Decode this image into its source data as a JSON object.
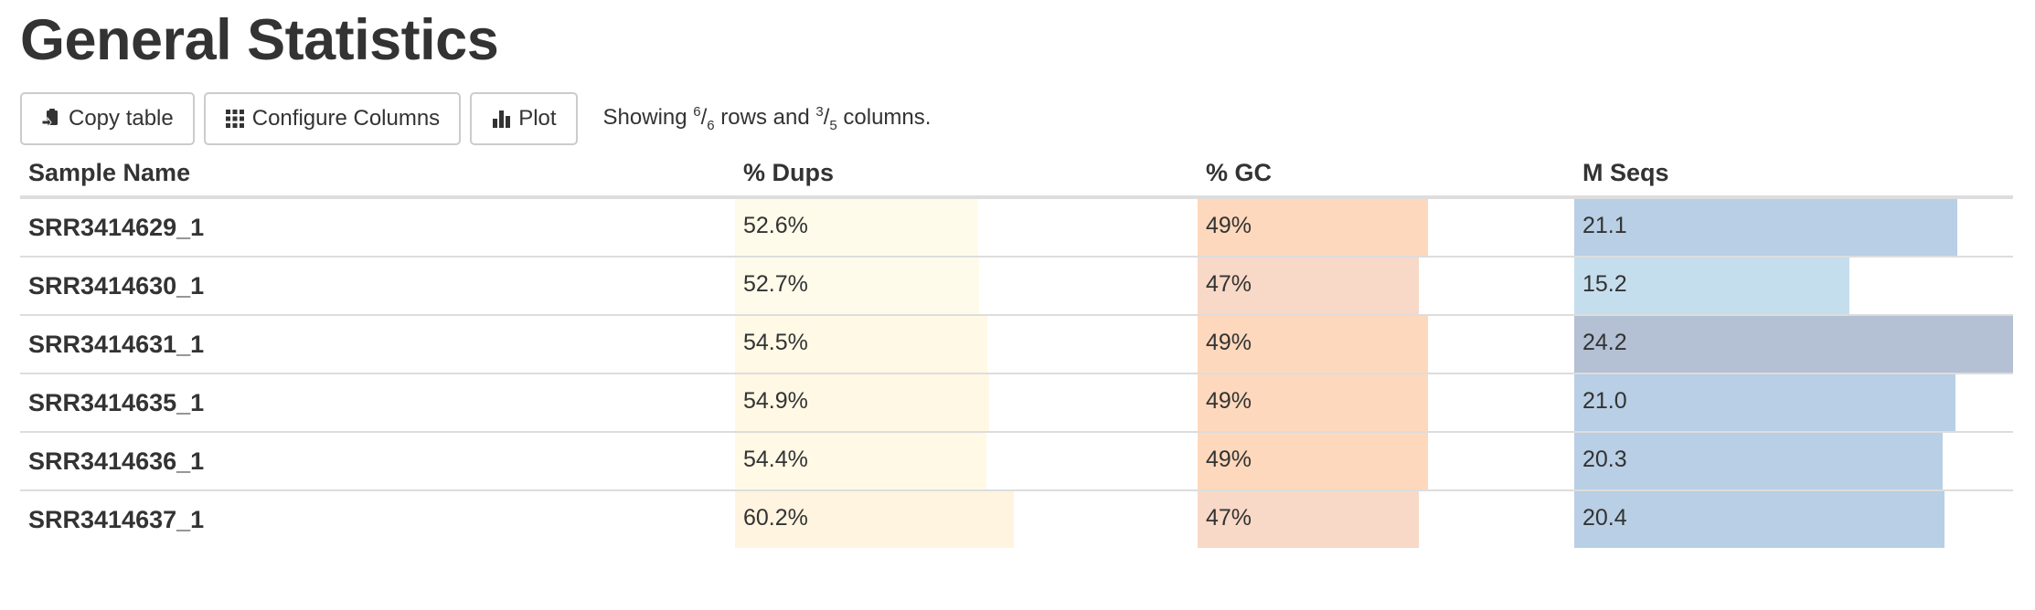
{
  "title": "General Statistics",
  "toolbar": {
    "copy_label": "Copy table",
    "configure_label": "Configure Columns",
    "plot_label": "Plot",
    "status": {
      "prefix": "Showing ",
      "rows_shown": "6",
      "rows_total": "6",
      "rows_word": " rows and ",
      "cols_shown": "3",
      "cols_total": "5",
      "cols_word": " columns."
    }
  },
  "table": {
    "headers": {
      "sample": "Sample Name",
      "dups": "% Dups",
      "gc": "% GC",
      "mseqs": "M Seqs"
    },
    "rows": [
      {
        "sample": "SRR3414629_1",
        "dups": "52.6%",
        "dups_value": 52.6,
        "gc": "49%",
        "gc_value": 49,
        "mseqs": "21.1",
        "mseqs_value": 21.1
      },
      {
        "sample": "SRR3414630_1",
        "dups": "52.7%",
        "dups_value": 52.7,
        "gc": "47%",
        "gc_value": 47,
        "mseqs": "15.2",
        "mseqs_value": 15.2
      },
      {
        "sample": "SRR3414631_1",
        "dups": "54.5%",
        "dups_value": 54.5,
        "gc": "49%",
        "gc_value": 49,
        "mseqs": "24.2",
        "mseqs_value": 24.2
      },
      {
        "sample": "SRR3414635_1",
        "dups": "54.9%",
        "dups_value": 54.9,
        "gc": "49%",
        "gc_value": 49,
        "mseqs": "21.0",
        "mseqs_value": 21.0
      },
      {
        "sample": "SRR3414636_1",
        "dups": "54.4%",
        "dups_value": 54.4,
        "gc": "49%",
        "gc_value": 49,
        "mseqs": "20.3",
        "mseqs_value": 20.3
      },
      {
        "sample": "SRR3414637_1",
        "dups": "60.2%",
        "dups_value": 60.2,
        "gc": "47%",
        "gc_value": 47,
        "mseqs": "20.4",
        "mseqs_value": 20.4
      }
    ],
    "scales": {
      "dups_max": 100,
      "gc_max": 80,
      "mseqs_max": 24.2
    },
    "colors": {
      "dups": [
        "#fffbea",
        "#fffbea",
        "#fff9e6",
        "#fff8e5",
        "#fff9e6",
        "#fff4df"
      ],
      "gc": [
        "#fdd8bc",
        "#f8d8c6",
        "#fdd8bc",
        "#fdd8bc",
        "#fdd8bc",
        "#f8d8c6"
      ],
      "mseqs": [
        "#b8cfe5",
        "#c5deee",
        "#b4c0d3",
        "#b8cfe5",
        "#b8cfe5",
        "#b8cfe5"
      ]
    }
  }
}
